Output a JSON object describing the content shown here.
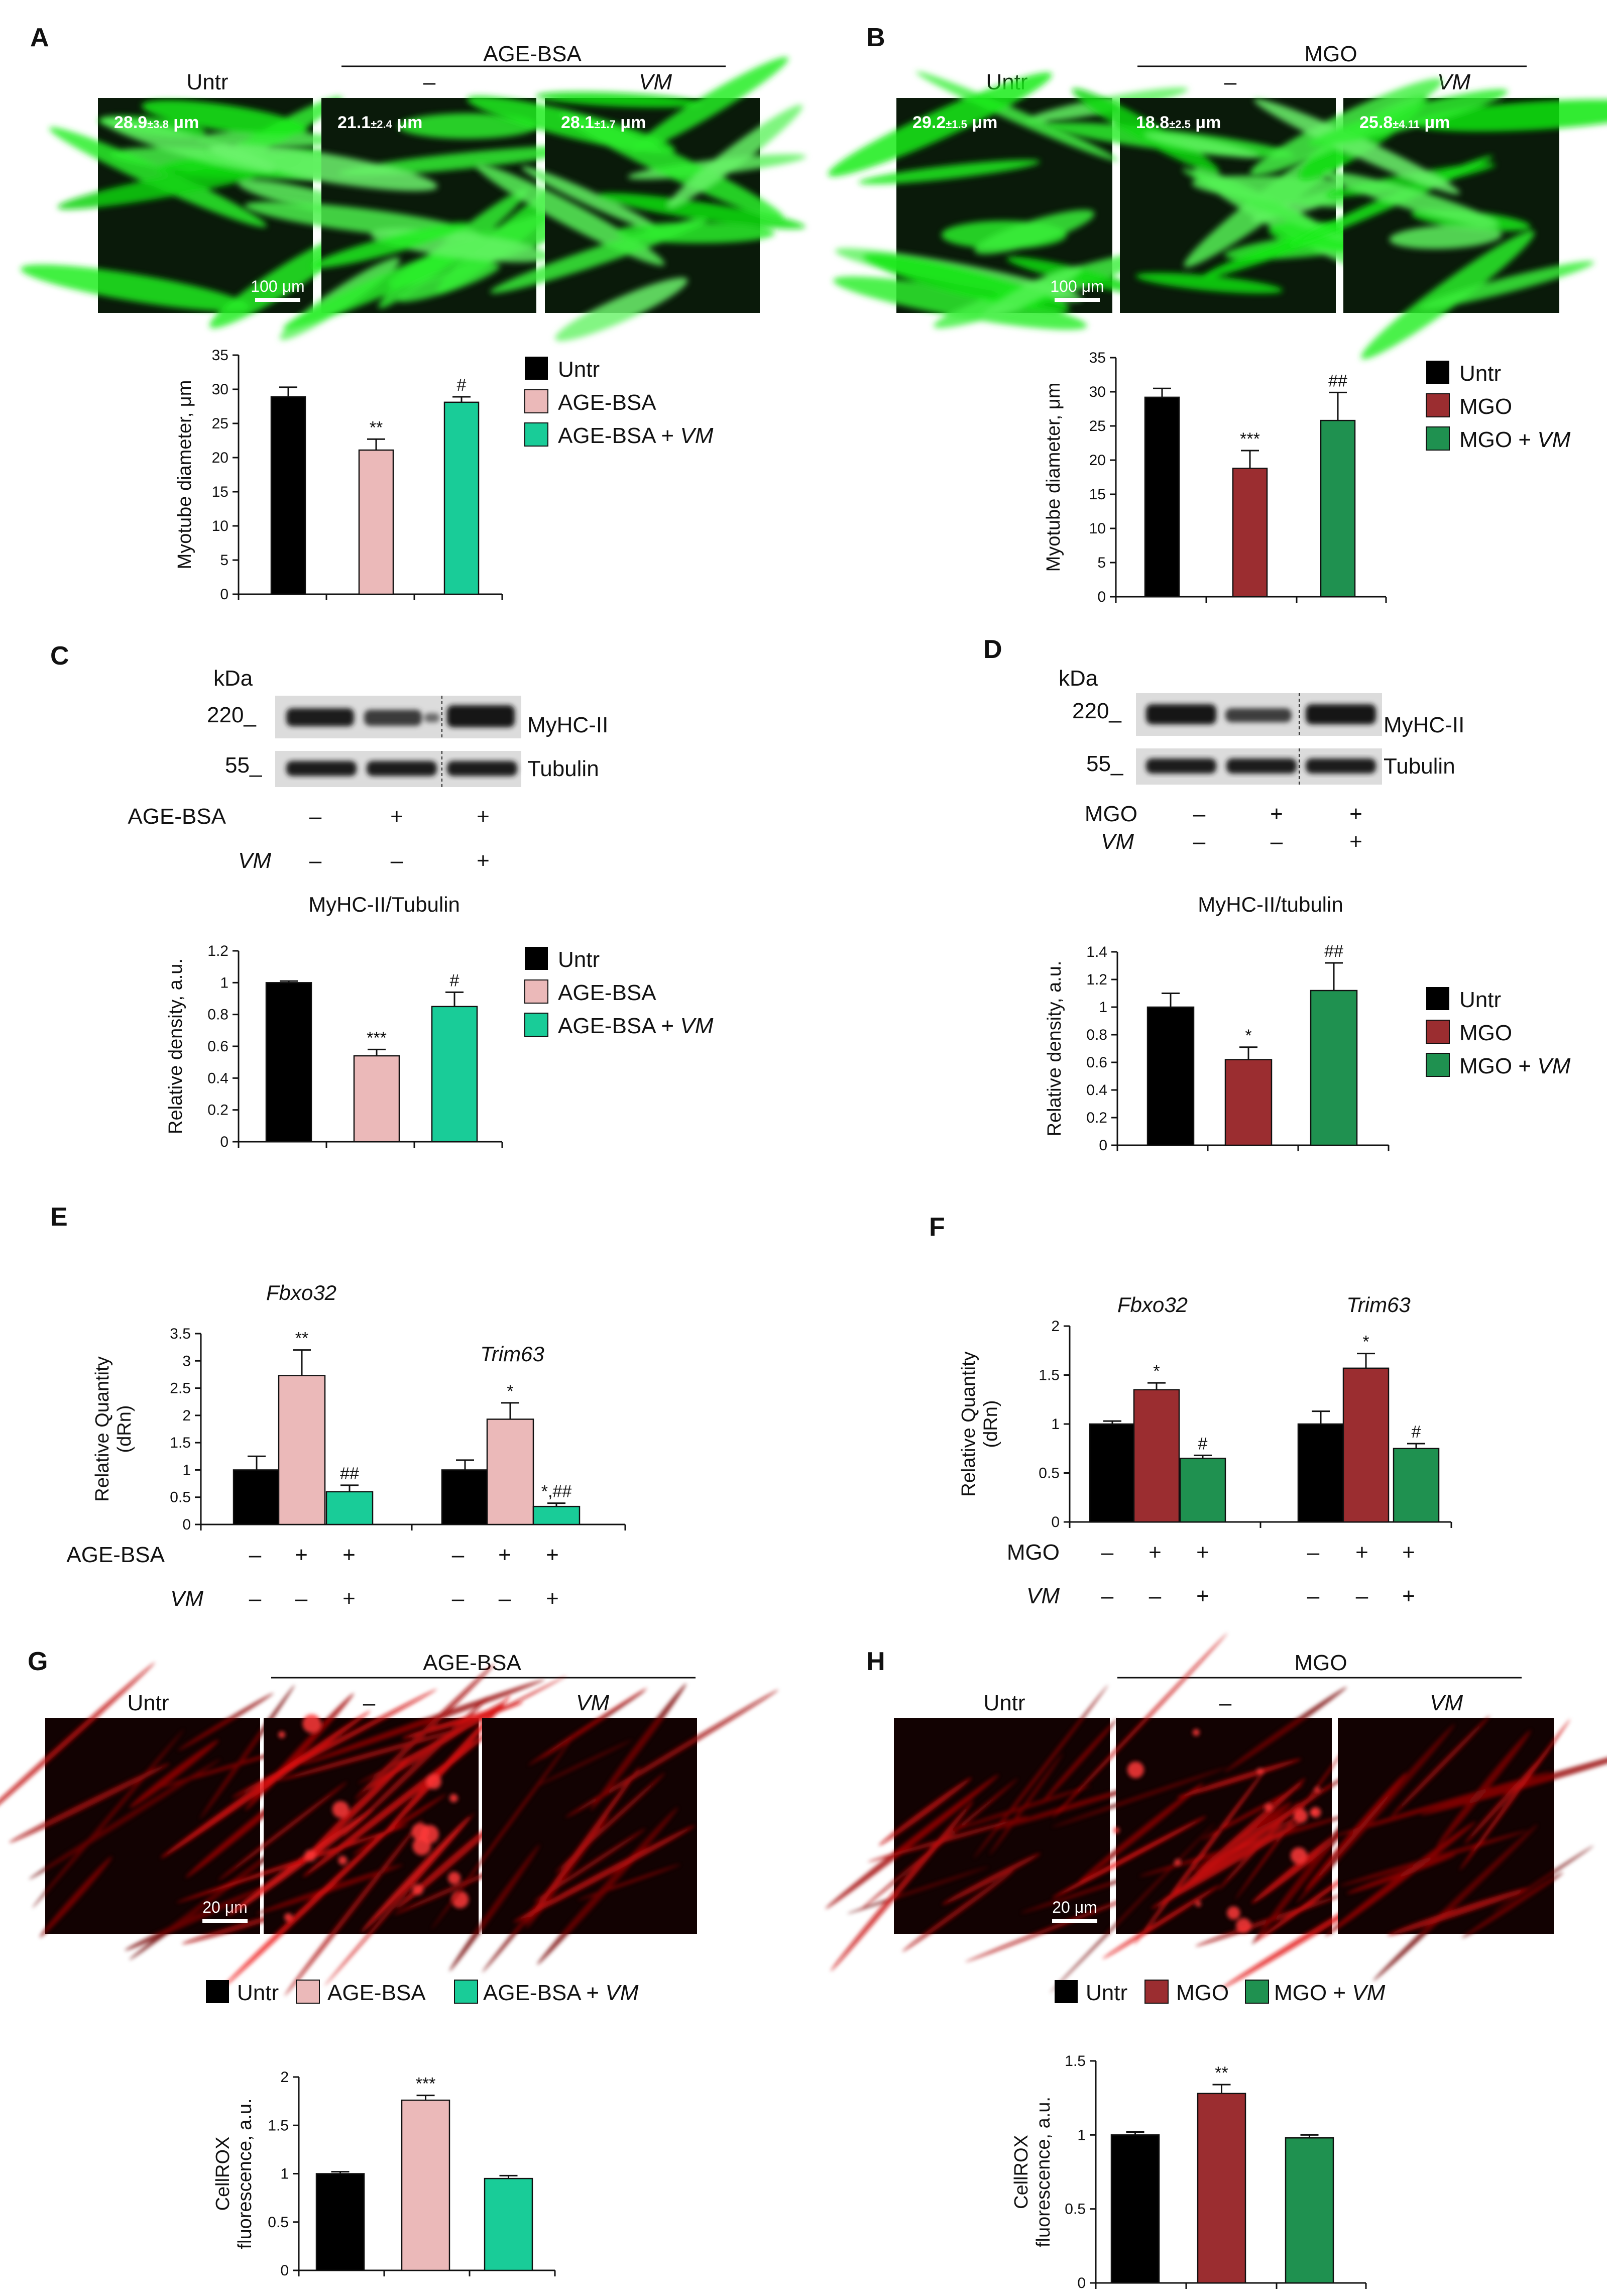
{
  "colors": {
    "untr": "#000000",
    "age_bsa": "#ebb9b9",
    "age_bsa_vm": "#19cc98",
    "mgo": "#9b2d30",
    "mgo_vm": "#1f9150",
    "green_fluor": "#2fd62f",
    "red_fluor": "#d41515"
  },
  "panels": {
    "A": {
      "label": "A",
      "group_header": "AGE-BSA",
      "col_labels": [
        "Untr",
        "–",
        "VM"
      ],
      "micro_values": [
        {
          "value": "28.9",
          "sd": "±3.8",
          "unit": " μm"
        },
        {
          "value": "21.1",
          "sd": "±2.4",
          "unit": " μm"
        },
        {
          "value": "28.1",
          "sd": "±1.7",
          "unit": " μm"
        }
      ],
      "scale_bar": "100 μm",
      "legend": [
        {
          "name": "Untr",
          "suffix": ""
        },
        {
          "name": "AGE-BSA",
          "suffix": ""
        },
        {
          "name": "AGE-BSA + ",
          "suffix": "VM"
        }
      ]
    },
    "B": {
      "label": "B",
      "group_header": "MGO",
      "col_labels": [
        "Untr",
        "–",
        "VM"
      ],
      "micro_values": [
        {
          "value": "29.2",
          "sd": "±1.5",
          "unit": " μm"
        },
        {
          "value": "18.8",
          "sd": "±2.5",
          "unit": " μm"
        },
        {
          "value": "25.8",
          "sd": "±4.11",
          "unit": " μm"
        }
      ],
      "scale_bar": "100 μm",
      "legend": [
        {
          "name": "Untr",
          "suffix": ""
        },
        {
          "name": "MGO",
          "suffix": ""
        },
        {
          "name": "MGO + ",
          "suffix": "VM"
        }
      ]
    },
    "C": {
      "label": "C",
      "kda": "kDa",
      "marker_high": "220_",
      "marker_low": "55_",
      "band_high": "MyHC-II",
      "band_low": "Tubulin",
      "treat_rows": [
        {
          "label": "AGE-BSA",
          "italic": false,
          "signs": [
            "–",
            "+",
            "+"
          ]
        },
        {
          "label": "VM",
          "italic": true,
          "signs": [
            "–",
            "–",
            "+"
          ]
        }
      ],
      "legend": [
        {
          "name": "Untr",
          "suffix": ""
        },
        {
          "name": "AGE-BSA",
          "suffix": ""
        },
        {
          "name": "AGE-BSA + ",
          "suffix": "VM"
        }
      ]
    },
    "D": {
      "label": "D",
      "kda": "kDa",
      "marker_high": "220_",
      "marker_low": "55_",
      "band_high": "MyHC-II",
      "band_low": "Tubulin",
      "treat_rows": [
        {
          "label": "MGO",
          "italic": false,
          "signs": [
            "–",
            "+",
            "+"
          ]
        },
        {
          "label": "VM",
          "italic": true,
          "signs": [
            "–",
            "–",
            "+"
          ]
        }
      ],
      "legend": [
        {
          "name": "Untr",
          "suffix": ""
        },
        {
          "name": "MGO",
          "suffix": ""
        },
        {
          "name": "MGO + ",
          "suffix": "VM"
        }
      ]
    },
    "E": {
      "label": "E",
      "treat_rows": [
        {
          "label": "AGE-BSA",
          "italic": false,
          "signs": [
            "–",
            "+",
            "+",
            "–",
            "+",
            "+"
          ]
        },
        {
          "label": "VM",
          "italic": true,
          "signs": [
            "–",
            "–",
            "+",
            "–",
            "–",
            "+"
          ]
        }
      ]
    },
    "F": {
      "label": "F",
      "treat_rows": [
        {
          "label": "MGO",
          "italic": false,
          "signs": [
            "–",
            "+",
            "+",
            "–",
            "+",
            "+"
          ]
        },
        {
          "label": "VM",
          "italic": true,
          "signs": [
            "–",
            "–",
            "+",
            "–",
            "–",
            "+"
          ]
        }
      ]
    },
    "G": {
      "label": "G",
      "group_header": "AGE-BSA",
      "col_labels": [
        "Untr",
        "–",
        "VM"
      ],
      "scale_bar": "20 μm",
      "legend": [
        {
          "name": "Untr",
          "suffix": ""
        },
        {
          "name": "AGE-BSA",
          "suffix": ""
        },
        {
          "name": "AGE-BSA + ",
          "suffix": "VM"
        }
      ]
    },
    "H": {
      "label": "H",
      "group_header": "MGO",
      "col_labels": [
        "Untr",
        "–",
        "VM"
      ],
      "scale_bar": "20 μm",
      "legend": [
        {
          "name": "Untr",
          "suffix": ""
        },
        {
          "name": "MGO",
          "suffix": ""
        },
        {
          "name": "MGO + ",
          "suffix": "VM"
        }
      ]
    }
  },
  "chart_data": [
    {
      "panel": "A",
      "type": "bar",
      "categories": [
        "Untr",
        "AGE-BSA",
        "AGE-BSA + VM"
      ],
      "values": [
        28.9,
        21.1,
        28.1
      ],
      "errors": [
        1.4,
        1.6,
        0.8
      ],
      "annotations": [
        "",
        "**",
        "#"
      ],
      "ylabel": "Myotube diameter, μm",
      "ylim": [
        0,
        35
      ],
      "yticks": [
        0,
        5,
        10,
        15,
        20,
        25,
        30,
        35
      ]
    },
    {
      "panel": "B",
      "type": "bar",
      "categories": [
        "Untr",
        "MGO",
        "MGO + VM"
      ],
      "values": [
        29.2,
        18.8,
        25.8
      ],
      "errors": [
        1.3,
        2.6,
        4.1
      ],
      "annotations": [
        "",
        "***",
        "##"
      ],
      "ylabel": "Myotube diameter, μm",
      "ylim": [
        0,
        35
      ],
      "yticks": [
        0,
        5,
        10,
        15,
        20,
        25,
        30,
        35
      ]
    },
    {
      "panel": "C",
      "type": "bar",
      "title": "MyHC-II/Tubulin",
      "categories": [
        "Untr",
        "AGE-BSA",
        "AGE-BSA + VM"
      ],
      "values": [
        1.0,
        0.54,
        0.85
      ],
      "errors": [
        0.01,
        0.04,
        0.09
      ],
      "annotations": [
        "",
        "***",
        "#"
      ],
      "ylabel": "Relative density, a.u.",
      "ylim": [
        0,
        1.2
      ],
      "yticks": [
        0,
        0.2,
        0.4,
        0.6,
        0.8,
        1,
        1.2
      ]
    },
    {
      "panel": "D",
      "type": "bar",
      "title": "MyHC-II/tubulin",
      "categories": [
        "Untr",
        "MGO",
        "MGO + VM"
      ],
      "values": [
        1.0,
        0.62,
        1.12
      ],
      "errors": [
        0.1,
        0.09,
        0.2
      ],
      "annotations": [
        "",
        "*",
        "##"
      ],
      "ylabel": "Relative density, a.u.",
      "ylim": [
        0,
        1.4
      ],
      "yticks": [
        0,
        0.2,
        0.4,
        0.6,
        0.8,
        1,
        1.2,
        1.4
      ]
    },
    {
      "panel": "E",
      "type": "bar",
      "groups": [
        "Fbxo32",
        "Trim63"
      ],
      "series": [
        {
          "name": "Untr",
          "values": [
            1.0,
            1.0
          ],
          "errors": [
            0.25,
            0.18
          ],
          "annotations": [
            "",
            ""
          ]
        },
        {
          "name": "AGE-BSA",
          "values": [
            2.73,
            1.93
          ],
          "errors": [
            0.47,
            0.3
          ],
          "annotations": [
            "**",
            "*"
          ]
        },
        {
          "name": "AGE-BSA + VM",
          "values": [
            0.6,
            0.33
          ],
          "errors": [
            0.12,
            0.06
          ],
          "annotations": [
            "##",
            "*,##"
          ]
        }
      ],
      "ylabel": "Relative Quantity (dRn)",
      "ylim": [
        0,
        3.5
      ],
      "yticks": [
        0,
        0.5,
        1,
        1.5,
        2,
        2.5,
        3,
        3.5
      ]
    },
    {
      "panel": "F",
      "type": "bar",
      "groups": [
        "Fbxo32",
        "Trim63"
      ],
      "series": [
        {
          "name": "Untr",
          "values": [
            1.0,
            1.0
          ],
          "errors": [
            0.03,
            0.13
          ],
          "annotations": [
            "",
            ""
          ]
        },
        {
          "name": "MGO",
          "values": [
            1.35,
            1.57
          ],
          "errors": [
            0.07,
            0.15
          ],
          "annotations": [
            "*",
            "*"
          ]
        },
        {
          "name": "MGO + VM",
          "values": [
            0.65,
            0.75
          ],
          "errors": [
            0.03,
            0.05
          ],
          "annotations": [
            "#",
            "#"
          ]
        }
      ],
      "ylabel": "Relative Quantity (dRn)",
      "ylim": [
        0,
        2
      ],
      "yticks": [
        0,
        0.5,
        1,
        1.5,
        2
      ]
    },
    {
      "panel": "G",
      "type": "bar",
      "categories": [
        "Untr",
        "AGE-BSA",
        "AGE-BSA + VM"
      ],
      "values": [
        1.0,
        1.76,
        0.95
      ],
      "errors": [
        0.02,
        0.05,
        0.03
      ],
      "annotations": [
        "",
        "***",
        ""
      ],
      "ylabel": "CellROX fluorescence, a.u.",
      "ylim": [
        0,
        2
      ],
      "yticks": [
        0,
        0.5,
        1,
        1.5,
        2
      ]
    },
    {
      "panel": "H",
      "type": "bar",
      "categories": [
        "Untr",
        "MGO",
        "MGO + VM"
      ],
      "values": [
        1.0,
        1.28,
        0.98
      ],
      "errors": [
        0.02,
        0.06,
        0.02
      ],
      "annotations": [
        "",
        "**",
        ""
      ],
      "ylabel": "CellROX fluorescence, a.u.",
      "ylim": [
        0,
        1.5
      ],
      "yticks": [
        0,
        0.5,
        1,
        1.5
      ]
    }
  ]
}
